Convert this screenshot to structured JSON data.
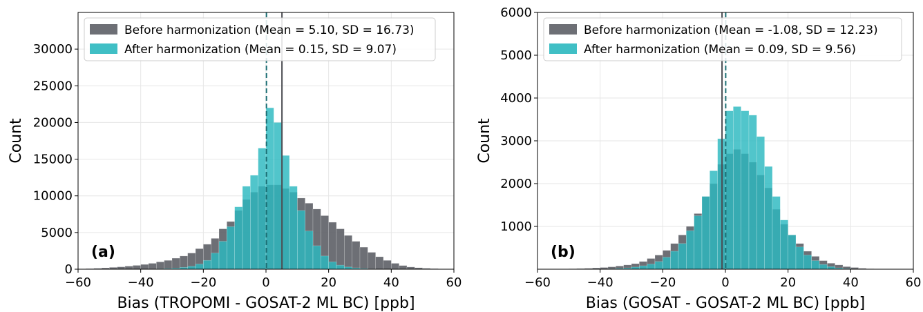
{
  "colors": {
    "before": "#5d5f66",
    "after": "#2bb8bf"
  },
  "chart_data": [
    {
      "type": "bar",
      "panel": "(a)",
      "xlabel": "Bias (TROPOMI - GOSAT-2 ML BC) [ppb]",
      "ylabel": "Count",
      "xlim": [
        -60,
        60
      ],
      "ylim": [
        0,
        35000
      ],
      "xticks": [
        -60,
        -40,
        -20,
        0,
        20,
        40,
        60
      ],
      "yticks": [
        0,
        5000,
        10000,
        15000,
        20000,
        25000,
        30000
      ],
      "xtick_labels": [
        "−60",
        "−40",
        "−20",
        "0",
        "20",
        "40",
        "60"
      ],
      "ytick_labels": [
        "0",
        "5000",
        "10000",
        "15000",
        "20000",
        "25000",
        "30000"
      ],
      "grid": true,
      "legend_position": "top-left",
      "bin_start": -60,
      "bin_width": 2.5,
      "series": [
        {
          "name": "Before harmonization (Mean = 5.10, SD = 16.73)",
          "mean": 5.1,
          "values": [
            50,
            80,
            120,
            180,
            250,
            320,
            420,
            520,
            650,
            800,
            1000,
            1200,
            1500,
            1800,
            2200,
            2800,
            3400,
            4200,
            5500,
            6500,
            8000,
            9500,
            10500,
            11300,
            11500,
            11500,
            11000,
            10500,
            9700,
            9000,
            8200,
            7300,
            6400,
            5500,
            4600,
            3800,
            3000,
            2300,
            1700,
            1200,
            800,
            500,
            300,
            200,
            120,
            80,
            40,
            20
          ]
        },
        {
          "name": "After harmonization (Mean = 0.15, SD = 9.07)",
          "mean": 0.15,
          "values": [
            0,
            0,
            0,
            0,
            0,
            0,
            0,
            10,
            20,
            40,
            60,
            100,
            150,
            250,
            400,
            700,
            1200,
            2200,
            3800,
            5800,
            8500,
            11300,
            12800,
            16500,
            22000,
            20000,
            15500,
            11300,
            8000,
            5200,
            3200,
            1800,
            1000,
            550,
            300,
            180,
            100,
            50,
            25,
            10,
            0,
            0,
            0,
            0,
            0,
            0,
            0,
            0
          ]
        }
      ]
    },
    {
      "type": "bar",
      "panel": "(b)",
      "xlabel": "Bias (GOSAT - GOSAT-2 ML BC) [ppb]",
      "ylabel": "Count",
      "xlim": [
        -60,
        60
      ],
      "ylim": [
        0,
        6000
      ],
      "xticks": [
        -60,
        -40,
        -20,
        0,
        20,
        40,
        60
      ],
      "yticks": [
        1000,
        2000,
        3000,
        4000,
        5000,
        6000
      ],
      "xtick_labels": [
        "−60",
        "−40",
        "−20",
        "0",
        "20",
        "40",
        "60"
      ],
      "ytick_labels": [
        "1000",
        "2000",
        "3000",
        "4000",
        "5000",
        "6000"
      ],
      "grid": true,
      "legend_position": "top",
      "bin_start": -60,
      "bin_width": 2.5,
      "series": [
        {
          "name": "Before harmonization (Mean = -1.08, SD = 12.23)",
          "mean": -1.08,
          "values": [
            0,
            0,
            0,
            5,
            10,
            15,
            20,
            30,
            40,
            55,
            75,
            100,
            130,
            180,
            250,
            330,
            440,
            600,
            800,
            1000,
            1300,
            1700,
            2000,
            2450,
            2700,
            2800,
            2700,
            2500,
            2200,
            1900,
            1400,
            1050,
            800,
            600,
            420,
            300,
            200,
            140,
            100,
            60,
            40,
            20,
            10,
            0,
            0,
            0,
            0,
            0
          ]
        },
        {
          "name": "After harmonization (Mean = 0.09, SD = 9.56)",
          "mean": 0.09,
          "values": [
            0,
            0,
            0,
            0,
            0,
            0,
            0,
            0,
            5,
            10,
            20,
            30,
            50,
            80,
            120,
            180,
            280,
            420,
            600,
            900,
            1250,
            1700,
            2300,
            3050,
            3700,
            3800,
            3700,
            3600,
            3100,
            2400,
            1700,
            1150,
            800,
            520,
            330,
            200,
            110,
            60,
            30,
            15,
            5,
            0,
            0,
            0,
            0,
            0,
            0,
            0
          ]
        }
      ]
    }
  ]
}
